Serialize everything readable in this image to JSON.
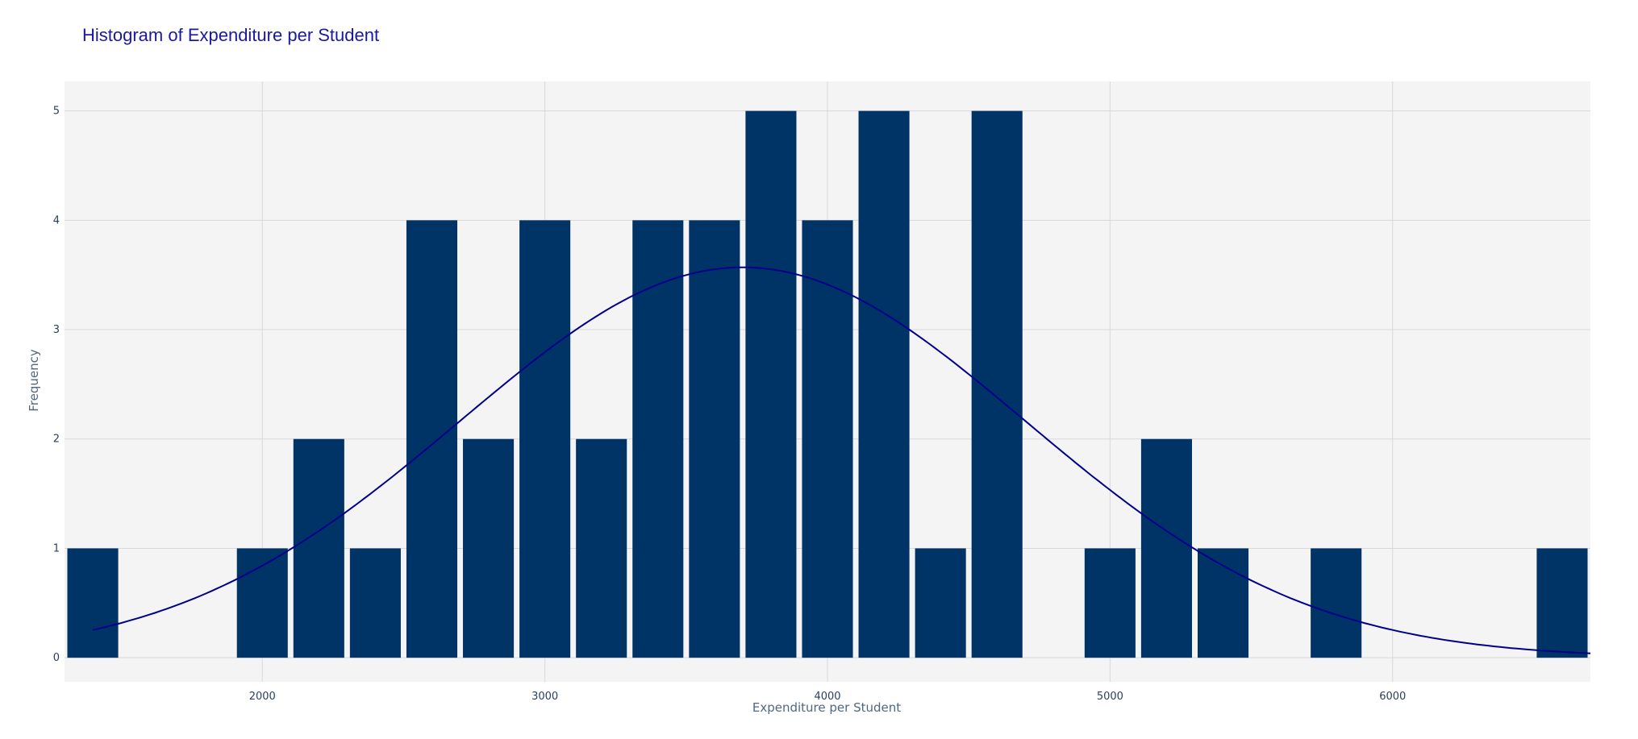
{
  "colors": {
    "bar": "#003366",
    "curve": "#00008b",
    "plot_bg": "#f4f4f5",
    "grid": "#d8d8dc",
    "title": "#1a1aa0"
  },
  "chart_data": {
    "type": "bar",
    "title": "Histogram of Expenditure per Student",
    "xlabel": "Expenditure per Student",
    "ylabel": "Frequency",
    "xlim": [
      1300,
      6700
    ],
    "ylim": [
      -0.22,
      5.27
    ],
    "xticks": [
      2000,
      3000,
      4000,
      5000,
      6000
    ],
    "yticks": [
      0,
      1,
      2,
      3,
      4,
      5
    ],
    "grid": true,
    "bin_width": 200,
    "bins": [
      {
        "start": 1300,
        "end": 1500,
        "count": 1
      },
      {
        "start": 1500,
        "end": 1700,
        "count": 0
      },
      {
        "start": 1700,
        "end": 1900,
        "count": 0
      },
      {
        "start": 1900,
        "end": 2100,
        "count": 1
      },
      {
        "start": 2100,
        "end": 2300,
        "count": 2
      },
      {
        "start": 2300,
        "end": 2500,
        "count": 1
      },
      {
        "start": 2500,
        "end": 2700,
        "count": 4
      },
      {
        "start": 2700,
        "end": 2900,
        "count": 2
      },
      {
        "start": 2900,
        "end": 3100,
        "count": 4
      },
      {
        "start": 3100,
        "end": 3300,
        "count": 2
      },
      {
        "start": 3300,
        "end": 3500,
        "count": 4
      },
      {
        "start": 3500,
        "end": 3700,
        "count": 4
      },
      {
        "start": 3700,
        "end": 3900,
        "count": 5
      },
      {
        "start": 3900,
        "end": 4100,
        "count": 4
      },
      {
        "start": 4100,
        "end": 4300,
        "count": 5
      },
      {
        "start": 4300,
        "end": 4500,
        "count": 1
      },
      {
        "start": 4500,
        "end": 4700,
        "count": 5
      },
      {
        "start": 4700,
        "end": 4900,
        "count": 0
      },
      {
        "start": 4900,
        "end": 5100,
        "count": 1
      },
      {
        "start": 5100,
        "end": 5300,
        "count": 2
      },
      {
        "start": 5300,
        "end": 5500,
        "count": 1
      },
      {
        "start": 5500,
        "end": 5700,
        "count": 0
      },
      {
        "start": 5700,
        "end": 5900,
        "count": 1
      },
      {
        "start": 5900,
        "end": 6100,
        "count": 0
      },
      {
        "start": 6100,
        "end": 6300,
        "count": 0
      },
      {
        "start": 6300,
        "end": 6500,
        "count": 0
      },
      {
        "start": 6500,
        "end": 6700,
        "count": 1
      }
    ],
    "curve": {
      "kind": "normal",
      "mean": 3700,
      "peak": 3.57,
      "sigma": 1000,
      "x_range": [
        1400,
        6700
      ]
    }
  }
}
